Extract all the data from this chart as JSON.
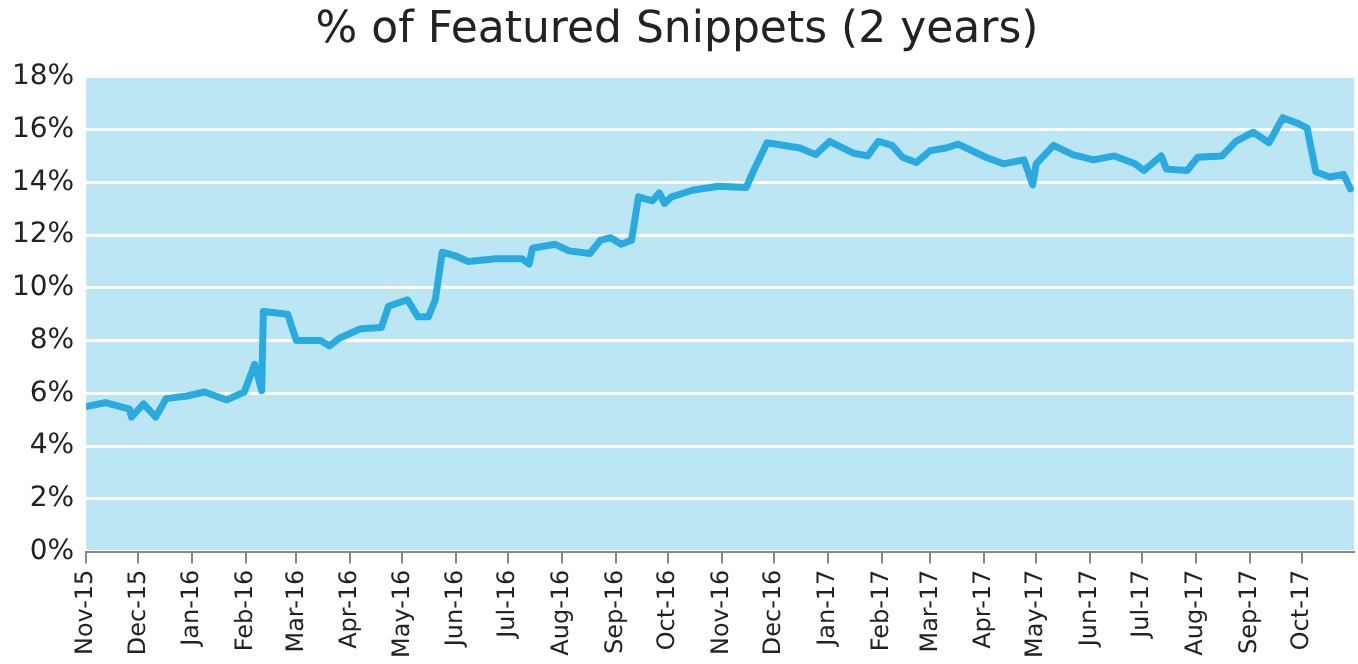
{
  "chart_data": {
    "type": "line",
    "title": "% of Featured Snippets (2 years)",
    "x": [
      "2015-11-01",
      "2015-11-12",
      "2015-11-26",
      "2015-11-27",
      "2015-12-04",
      "2015-12-11",
      "2015-12-17",
      "2015-12-29",
      "2016-01-08",
      "2016-01-21",
      "2016-01-31",
      "2016-02-06",
      "2016-02-10",
      "2016-02-11",
      "2016-02-25",
      "2016-03-01",
      "2016-03-15",
      "2016-03-20",
      "2016-03-26",
      "2016-04-07",
      "2016-04-19",
      "2016-04-23",
      "2016-05-04",
      "2016-05-10",
      "2016-05-16",
      "2016-05-20",
      "2016-05-24",
      "2016-06-01",
      "2016-06-08",
      "2016-06-24",
      "2016-07-09",
      "2016-07-13",
      "2016-07-15",
      "2016-07-28",
      "2016-08-05",
      "2016-08-17",
      "2016-08-23",
      "2016-08-29",
      "2016-09-04",
      "2016-09-10",
      "2016-09-14",
      "2016-09-22",
      "2016-09-26",
      "2016-09-29",
      "2016-10-03",
      "2016-10-15",
      "2016-10-30",
      "2016-11-15",
      "2016-11-19",
      "2016-11-27",
      "2016-12-16",
      "2016-12-25",
      "2017-01-02",
      "2017-01-16",
      "2017-01-24",
      "2017-01-30",
      "2017-02-07",
      "2017-02-13",
      "2017-02-21",
      "2017-03-01",
      "2017-03-10",
      "2017-03-17",
      "2017-04-02",
      "2017-04-12",
      "2017-04-24",
      "2017-04-29",
      "2017-05-01",
      "2017-05-11",
      "2017-05-22",
      "2017-06-03",
      "2017-06-15",
      "2017-06-27",
      "2017-07-02",
      "2017-07-12",
      "2017-07-15",
      "2017-07-27",
      "2017-08-02",
      "2017-08-16",
      "2017-08-24",
      "2017-09-03",
      "2017-09-12",
      "2017-09-20",
      "2017-09-28",
      "2017-10-04",
      "2017-10-09",
      "2017-10-17",
      "2017-10-25",
      "2017-10-29"
    ],
    "series": [
      {
        "color": "#29abe2",
        "values": [
          5.5,
          5.65,
          5.4,
          5.1,
          5.6,
          5.1,
          5.8,
          5.9,
          6.05,
          5.75,
          6.05,
          7.1,
          6.1,
          9.1,
          9.0,
          8.0,
          8.0,
          7.8,
          8.1,
          8.45,
          8.5,
          9.3,
          9.55,
          8.9,
          8.9,
          9.55,
          11.35,
          11.2,
          11.0,
          11.1,
          11.1,
          10.9,
          11.5,
          11.65,
          11.4,
          11.3,
          11.8,
          11.9,
          11.65,
          11.8,
          13.45,
          13.3,
          13.6,
          13.2,
          13.45,
          13.7,
          13.85,
          13.8,
          14.4,
          15.5,
          15.3,
          15.05,
          15.55,
          15.1,
          15.0,
          15.55,
          15.4,
          14.95,
          14.75,
          15.2,
          15.3,
          15.45,
          14.95,
          14.7,
          14.85,
          13.9,
          14.7,
          15.4,
          15.05,
          14.85,
          15.0,
          14.7,
          14.45,
          15.0,
          14.5,
          14.45,
          14.95,
          15.0,
          15.55,
          15.9,
          15.5,
          16.45,
          16.25,
          16.05,
          14.4,
          14.2,
          14.3,
          13.75
        ]
      }
    ],
    "xlim": [
      "2015-11-01",
      "2017-10-31"
    ],
    "xticks": [
      {
        "value": "2015-11-01",
        "label": "Nov-15"
      },
      {
        "value": "2015-12-01",
        "label": "Dec-15"
      },
      {
        "value": "2016-01-01",
        "label": "Jan-16"
      },
      {
        "value": "2016-02-01",
        "label": "Feb-16"
      },
      {
        "value": "2016-03-01",
        "label": "Mar-16"
      },
      {
        "value": "2016-04-01",
        "label": "Apr-16"
      },
      {
        "value": "2016-05-01",
        "label": "May-16"
      },
      {
        "value": "2016-06-01",
        "label": "Jun-16"
      },
      {
        "value": "2016-07-01",
        "label": "Jul-16"
      },
      {
        "value": "2016-08-01",
        "label": "Aug-16"
      },
      {
        "value": "2016-09-01",
        "label": "Sep-16"
      },
      {
        "value": "2016-10-01",
        "label": "Oct-16"
      },
      {
        "value": "2016-11-01",
        "label": "Nov-16"
      },
      {
        "value": "2016-12-01",
        "label": "Dec-16"
      },
      {
        "value": "2017-01-01",
        "label": "Jan-17"
      },
      {
        "value": "2017-02-01",
        "label": "Feb-17"
      },
      {
        "value": "2017-03-01",
        "label": "Mar-17"
      },
      {
        "value": "2017-04-01",
        "label": "Apr-17"
      },
      {
        "value": "2017-05-01",
        "label": "May-17"
      },
      {
        "value": "2017-06-01",
        "label": "Jun-17"
      },
      {
        "value": "2017-07-01",
        "label": "Jul-17"
      },
      {
        "value": "2017-08-01",
        "label": "Aug-17"
      },
      {
        "value": "2017-09-01",
        "label": "Sep-17"
      },
      {
        "value": "2017-10-01",
        "label": "Oct-17"
      }
    ],
    "ylim": [
      0,
      18
    ],
    "yticks": [
      {
        "value": 0,
        "label": "0%"
      },
      {
        "value": 2,
        "label": "2%"
      },
      {
        "value": 4,
        "label": "4%"
      },
      {
        "value": 6,
        "label": "6%"
      },
      {
        "value": 8,
        "label": "8%"
      },
      {
        "value": 10,
        "label": "10%"
      },
      {
        "value": 12,
        "label": "12%"
      },
      {
        "value": 14,
        "label": "14%"
      },
      {
        "value": 16,
        "label": "16%"
      },
      {
        "value": 18,
        "label": "18%"
      }
    ],
    "grid": "y",
    "legend": false,
    "marker": "none",
    "line_style": "solid"
  }
}
